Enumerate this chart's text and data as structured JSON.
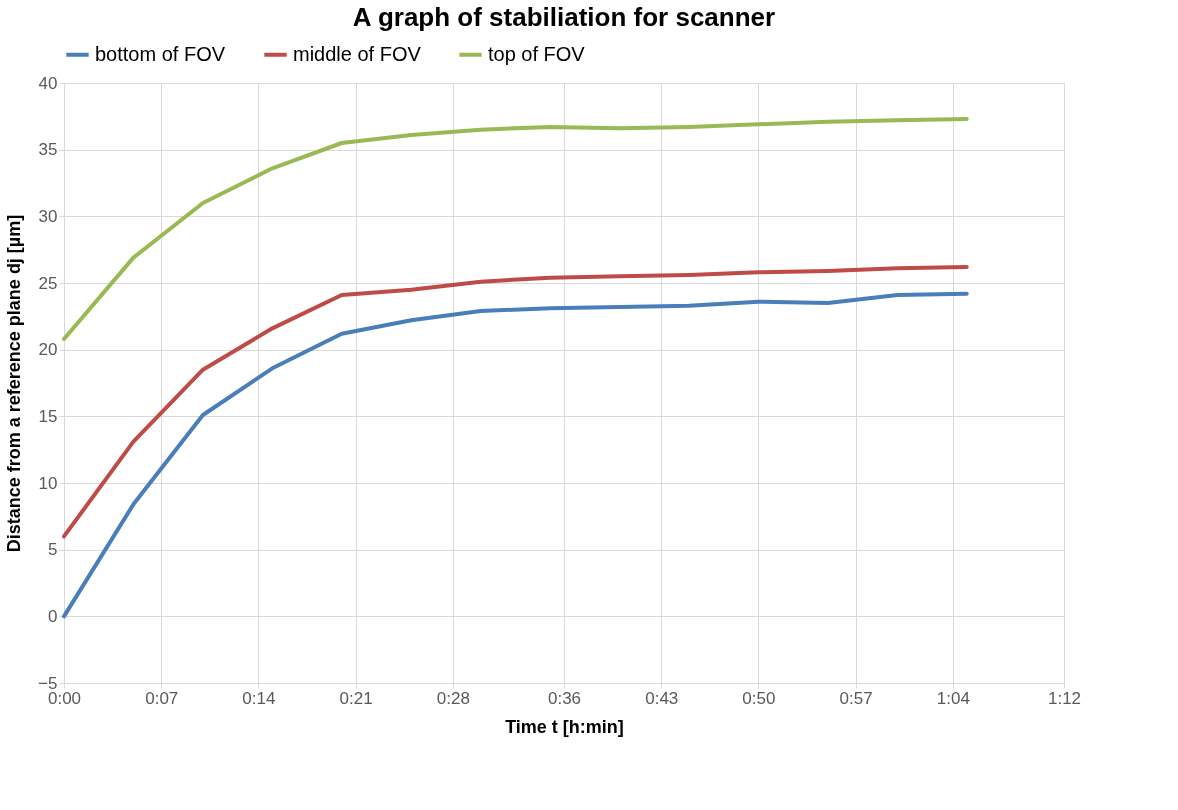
{
  "chart_data": {
    "type": "line",
    "title": "A graph of stabiliation for scanner",
    "xlabel": "Time t [h:min]",
    "ylabel": "Distance from a reference plane dj [µm]",
    "x": [
      0,
      0.0833,
      0.1667,
      0.25,
      0.3333,
      0.4167,
      0.5,
      0.5833,
      0.6667,
      0.75,
      0.8333,
      0.9167,
      1.0,
      1.0833
    ],
    "series": [
      {
        "name": "bottom of FOV",
        "color": "#4a7ebb",
        "values": [
          0,
          8.4,
          15.1,
          18.6,
          21.2,
          22.2,
          22.9,
          23.1,
          23.2,
          23.3,
          23.6,
          23.5,
          24.1,
          24.2
        ]
      },
      {
        "name": "middle of FOV",
        "color": "#be4b48",
        "values": [
          6.0,
          13.1,
          18.5,
          21.6,
          24.1,
          24.5,
          25.1,
          25.4,
          25.5,
          25.6,
          25.8,
          25.9,
          26.1,
          26.2
        ]
      },
      {
        "name": "top of FOV",
        "color": "#98b954",
        "values": [
          20.8,
          26.9,
          31.0,
          33.6,
          35.5,
          36.1,
          36.5,
          36.7,
          36.6,
          36.7,
          36.9,
          37.1,
          37.2,
          37.3
        ]
      }
    ],
    "xlim": [
      0,
      1.2
    ],
    "xticks": [
      {
        "value": 0,
        "label": "0:00"
      },
      {
        "value": 0.1167,
        "label": "0:07"
      },
      {
        "value": 0.2333,
        "label": "0:14"
      },
      {
        "value": 0.35,
        "label": "0:21"
      },
      {
        "value": 0.4667,
        "label": "0:28"
      },
      {
        "value": 0.6,
        "label": "0:36"
      },
      {
        "value": 0.7167,
        "label": "0:43"
      },
      {
        "value": 0.8333,
        "label": "0:50"
      },
      {
        "value": 0.95,
        "label": "0:57"
      },
      {
        "value": 1.0667,
        "label": "1:04"
      },
      {
        "value": 1.2,
        "label": "1:12"
      }
    ],
    "ylim": [
      -5,
      40
    ],
    "yticks": [
      -5,
      0,
      5,
      10,
      15,
      20,
      25,
      30,
      35,
      40
    ],
    "grid": true,
    "legend": "top",
    "marker": "none",
    "line_style": "solid"
  }
}
